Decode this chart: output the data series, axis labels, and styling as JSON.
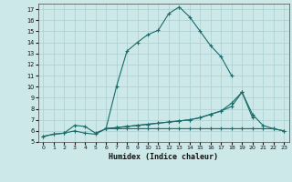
{
  "bg_color": "#cce8e8",
  "grid_color": "#aacfcf",
  "line_color": "#1a6b6b",
  "xlabel": "Humidex (Indice chaleur)",
  "xlim": [
    -0.5,
    23.5
  ],
  "ylim": [
    5,
    17.5
  ],
  "xticks": [
    0,
    1,
    2,
    3,
    4,
    5,
    6,
    7,
    8,
    9,
    10,
    11,
    12,
    13,
    14,
    15,
    16,
    17,
    18,
    19,
    20,
    21,
    22,
    23
  ],
  "yticks": [
    5,
    6,
    7,
    8,
    9,
    10,
    11,
    12,
    13,
    14,
    15,
    16,
    17
  ],
  "lines": [
    {
      "x": [
        0,
        1,
        2,
        3,
        4,
        5,
        6,
        7,
        8,
        9,
        10,
        11,
        12,
        13,
        14,
        15,
        16,
        17,
        18,
        19,
        20,
        21,
        22,
        23
      ],
      "y": [
        5.5,
        5.7,
        5.8,
        6.5,
        6.4,
        5.8,
        6.2,
        10.0,
        13.2,
        14.0,
        14.7,
        15.1,
        16.6,
        17.2,
        16.3,
        15.0,
        13.7,
        12.7,
        11.0,
        null,
        null,
        null,
        null,
        null
      ]
    },
    {
      "x": [
        0,
        1,
        2,
        3,
        4,
        5,
        6,
        7,
        8,
        9,
        10,
        11,
        12,
        13,
        14,
        15,
        16,
        17,
        18,
        19,
        20,
        21,
        22,
        23
      ],
      "y": [
        5.5,
        5.7,
        5.8,
        6.0,
        5.8,
        5.7,
        6.2,
        6.3,
        6.4,
        6.5,
        6.6,
        6.7,
        6.8,
        6.9,
        7.0,
        7.2,
        7.5,
        7.8,
        8.5,
        9.5,
        7.5,
        6.5,
        6.2,
        6.0
      ]
    },
    {
      "x": [
        0,
        1,
        2,
        3,
        4,
        5,
        6,
        7,
        8,
        9,
        10,
        11,
        12,
        13,
        14,
        15,
        16,
        17,
        18,
        19,
        20,
        21,
        22,
        23
      ],
      "y": [
        null,
        null,
        null,
        null,
        null,
        null,
        6.2,
        6.3,
        6.4,
        6.5,
        6.6,
        6.7,
        6.8,
        6.9,
        7.0,
        7.2,
        7.5,
        7.8,
        8.2,
        9.5,
        7.2,
        null,
        null,
        null
      ]
    },
    {
      "x": [
        0,
        1,
        2,
        3,
        4,
        5,
        6,
        7,
        8,
        9,
        10,
        11,
        12,
        13,
        14,
        15,
        16,
        17,
        18,
        19,
        20,
        21,
        22,
        23
      ],
      "y": [
        null,
        null,
        null,
        null,
        null,
        null,
        6.2,
        6.2,
        6.2,
        6.2,
        6.2,
        6.2,
        6.2,
        6.2,
        6.2,
        6.2,
        6.2,
        6.2,
        6.2,
        6.2,
        6.2,
        6.2,
        6.2,
        6.0
      ]
    }
  ]
}
